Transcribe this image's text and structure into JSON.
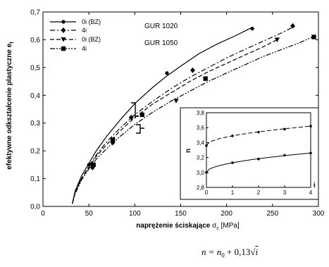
{
  "chart_data": [
    {
      "type": "line",
      "xlabel_main": "naprężenie ściskające",
      "xlabel_symbol": "σ",
      "xlabel_sub": "c",
      "xlabel_unit": "[MPa]",
      "ylabel_main": "efektywne odkształcenie plastyczne",
      "ylabel_symbol": "e",
      "ylabel_sub": "f",
      "xlim": [
        0,
        300
      ],
      "ylim": [
        0,
        0.7
      ],
      "xticks": [
        "0",
        "50",
        "100",
        "150",
        "200",
        "250",
        "300"
      ],
      "yticks": [
        "0,0",
        "0,1",
        "0,2",
        "0,3",
        "0,4",
        "0,5",
        "0,6",
        "0,7"
      ],
      "grid": false,
      "legend_position": "top-left",
      "group_labels": [
        "GUR 1020",
        "GUR 1050"
      ],
      "series": [
        {
          "name": "0i (BZ)",
          "marker": "circle",
          "dash": "solid",
          "x": [
            32,
            35,
            42,
            50,
            58,
            70,
            85,
            100,
            120,
            135,
            150,
            170,
            190,
            210,
            228
          ],
          "y": [
            0.01,
            0.055,
            0.11,
            0.155,
            0.2,
            0.255,
            0.315,
            0.37,
            0.43,
            0.47,
            0.505,
            0.55,
            0.585,
            0.615,
            0.645
          ],
          "markers_x": [
            50,
            135,
            228
          ],
          "markers_y": [
            0.15,
            0.48,
            0.64
          ]
        },
        {
          "name": "4i",
          "marker": "diamond",
          "dash": "dashdot",
          "x": [
            32,
            35,
            42,
            50,
            58,
            70,
            85,
            100,
            120,
            140,
            160,
            180,
            200,
            220,
            240,
            260,
            275
          ],
          "y": [
            0.01,
            0.05,
            0.1,
            0.145,
            0.185,
            0.235,
            0.285,
            0.33,
            0.38,
            0.425,
            0.465,
            0.5,
            0.535,
            0.565,
            0.595,
            0.625,
            0.65
          ],
          "markers_x": [
            54,
            76,
            96,
            163,
            272
          ],
          "markers_y": [
            0.14,
            0.23,
            0.32,
            0.49,
            0.65
          ]
        },
        {
          "name": "0i (BZ)",
          "marker": "triangle-down",
          "dash": "dash",
          "x": [
            32,
            35,
            42,
            50,
            58,
            70,
            85,
            100,
            120,
            140,
            160,
            180,
            200,
            220,
            240,
            255
          ],
          "y": [
            0.01,
            0.05,
            0.1,
            0.14,
            0.18,
            0.225,
            0.275,
            0.32,
            0.37,
            0.41,
            0.45,
            0.485,
            0.515,
            0.545,
            0.575,
            0.6
          ],
          "markers_x": [
            53,
            145,
            255
          ],
          "markers_y": [
            0.15,
            0.38,
            0.6
          ]
        },
        {
          "name": "4i",
          "marker": "square",
          "dash": "dashdotdot",
          "x": [
            32,
            35,
            42,
            50,
            58,
            70,
            85,
            100,
            120,
            140,
            160,
            180,
            200,
            220,
            240,
            260,
            280,
            297
          ],
          "y": [
            0.01,
            0.045,
            0.095,
            0.135,
            0.17,
            0.21,
            0.255,
            0.295,
            0.34,
            0.38,
            0.415,
            0.45,
            0.48,
            0.51,
            0.54,
            0.565,
            0.59,
            0.615
          ],
          "markers_x": [
            55,
            76,
            108,
            177,
            295
          ],
          "markers_y": [
            0.15,
            0.24,
            0.33,
            0.46,
            0.61
          ]
        }
      ]
    },
    {
      "type": "line",
      "xlabel": "i",
      "ylabel": "n",
      "xlim": [
        0,
        4
      ],
      "ylim": [
        2.8,
        3.8
      ],
      "xticks": [
        "0",
        "1",
        "2",
        "3",
        "4"
      ],
      "yticks": [
        "2,8",
        "3,0",
        "3,2",
        "3,4",
        "3,6",
        "3,8"
      ],
      "grid": false,
      "series": [
        {
          "dash": "dash",
          "n0": 3.36,
          "x": [
            0,
            1,
            2,
            3,
            4
          ],
          "y": [
            3.36,
            3.49,
            3.54,
            3.58,
            3.62
          ]
        },
        {
          "dash": "solid",
          "n0": 3.0,
          "x": [
            0,
            1,
            2,
            3,
            4
          ],
          "y": [
            3.0,
            3.13,
            3.18,
            3.23,
            3.26
          ]
        }
      ]
    }
  ],
  "formula": {
    "n": "n",
    "eq": " = ",
    "n0_base": "n",
    "n0_sub": "0",
    "plus": " + 0,13",
    "radical": "√",
    "i": "i"
  }
}
